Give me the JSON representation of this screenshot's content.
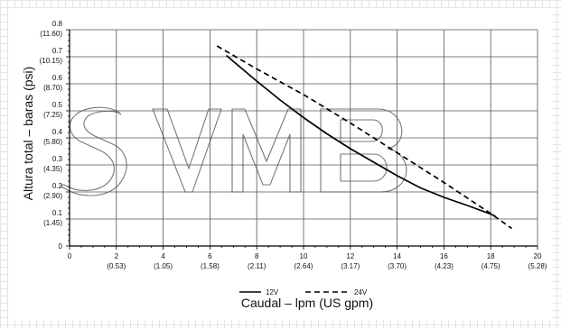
{
  "chart_data": {
    "type": "line",
    "xlabel": "Caudal – lpm (US gpm)",
    "ylabel": "Altura total – baras (psi)",
    "xlim": [
      0,
      20
    ],
    "ylim": [
      0,
      0.8
    ],
    "grid": true,
    "legend_position": "bottom-center",
    "watermark": "SVB",
    "x_ticks": [
      {
        "value": 0,
        "primary": "0",
        "secondary": ""
      },
      {
        "value": 2,
        "primary": "2",
        "secondary": "(0.53)"
      },
      {
        "value": 4,
        "primary": "4",
        "secondary": "(1.05)"
      },
      {
        "value": 6,
        "primary": "6",
        "secondary": "(1.58)"
      },
      {
        "value": 8,
        "primary": "8",
        "secondary": "(2.11)"
      },
      {
        "value": 10,
        "primary": "10",
        "secondary": "(2.64)"
      },
      {
        "value": 12,
        "primary": "12",
        "secondary": "(3.17)"
      },
      {
        "value": 14,
        "primary": "14",
        "secondary": "(3.70)"
      },
      {
        "value": 16,
        "primary": "16",
        "secondary": "(4.23)"
      },
      {
        "value": 18,
        "primary": "18",
        "secondary": "(4.75)"
      },
      {
        "value": 20,
        "primary": "20",
        "secondary": "(5.28)"
      }
    ],
    "y_ticks": [
      {
        "value": 0,
        "primary": "0",
        "secondary": ""
      },
      {
        "value": 0.1,
        "primary": "0.1",
        "secondary": "(1.45)"
      },
      {
        "value": 0.2,
        "primary": "0.2",
        "secondary": "(2.90)"
      },
      {
        "value": 0.3,
        "primary": "0.3",
        "secondary": "(4.35)"
      },
      {
        "value": 0.4,
        "primary": "0.4",
        "secondary": "(5.80)"
      },
      {
        "value": 0.5,
        "primary": "0.5",
        "secondary": "(7.25)"
      },
      {
        "value": 0.6,
        "primary": "0.6",
        "secondary": "(8.70)"
      },
      {
        "value": 0.7,
        "primary": "0.7",
        "secondary": "(10.15)"
      },
      {
        "value": 0.8,
        "primary": "0.8",
        "secondary": "(11.60)"
      }
    ],
    "series": [
      {
        "name": "12V",
        "dash": "solid",
        "color": "#000000",
        "x": [
          6.7,
          8.0,
          9.0,
          10.0,
          11.0,
          12.0,
          13.0,
          14.0,
          15.0,
          16.0,
          17.0,
          18.0,
          18.2
        ],
        "y": [
          0.705,
          0.61,
          0.54,
          0.475,
          0.415,
          0.36,
          0.31,
          0.26,
          0.215,
          0.18,
          0.15,
          0.118,
          0.11
        ]
      },
      {
        "name": "24V",
        "dash": "dashed",
        "color": "#000000",
        "x": [
          6.3,
          8.0,
          10.0,
          12.0,
          14.0,
          16.0,
          18.0,
          18.9
        ],
        "y": [
          0.74,
          0.655,
          0.56,
          0.455,
          0.345,
          0.235,
          0.12,
          0.065
        ]
      }
    ]
  }
}
